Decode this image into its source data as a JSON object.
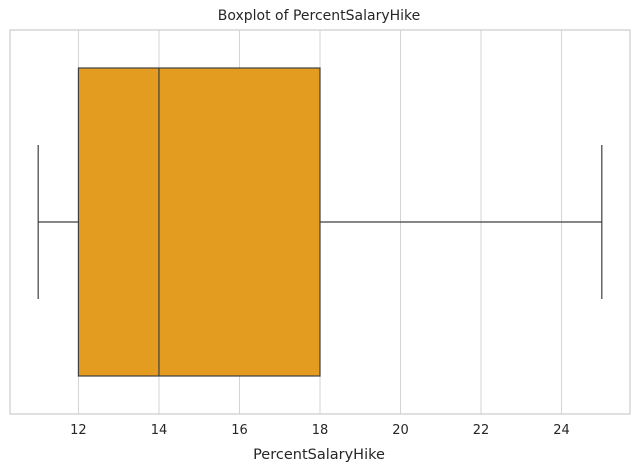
{
  "chart_data": {
    "type": "boxplot",
    "title": "Boxplot of PercentSalaryHike",
    "xlabel": "PercentSalaryHike",
    "ylabel": "",
    "orientation": "horizontal",
    "xlim": [
      10.3,
      25.7
    ],
    "xticks": [
      12,
      14,
      16,
      18,
      20,
      22,
      24
    ],
    "grid": "vertical",
    "box": {
      "min": 11,
      "q1": 12,
      "median": 14,
      "q3": 18,
      "max": 25
    },
    "colors": {
      "box_fill": "#e39c1f",
      "line": "#3f3f3f",
      "grid": "#d3d3d3",
      "spine": "#cccccc",
      "text": "#262626"
    }
  }
}
